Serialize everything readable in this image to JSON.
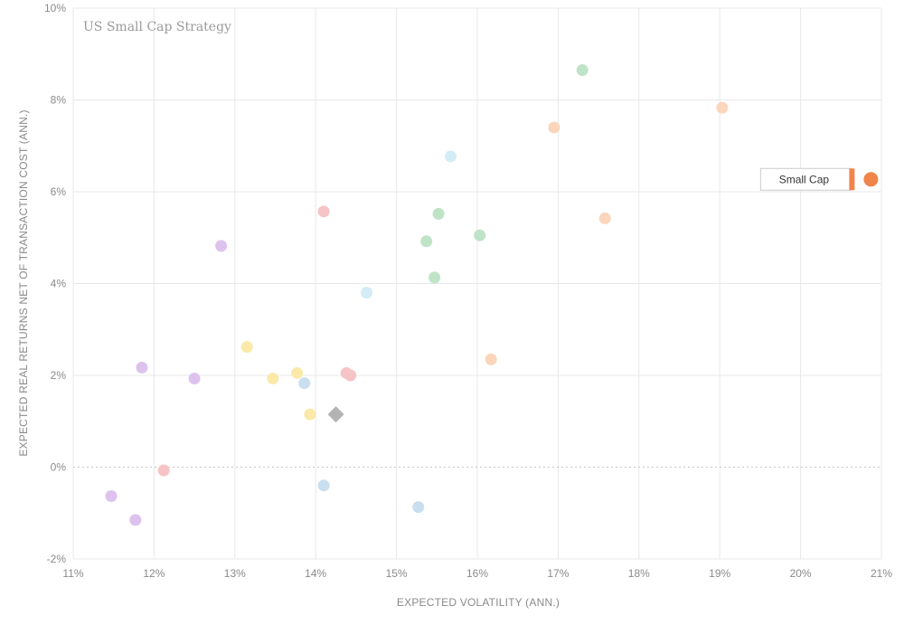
{
  "chart_data": {
    "type": "scatter",
    "title": "US Small Cap Strategy",
    "xlabel": "EXPECTED VOLATILITY (ANN.)",
    "ylabel": "EXPECTED REAL RETURNS NET OF TRANSACTION COST (ANN.)",
    "xlim": [
      11,
      21
    ],
    "ylim": [
      -2,
      10
    ],
    "x_ticks": [
      11,
      12,
      13,
      14,
      15,
      16,
      17,
      18,
      19,
      20,
      21
    ],
    "x_tick_labels": [
      "11%",
      "12%",
      "13%",
      "14%",
      "15%",
      "16%",
      "17%",
      "18%",
      "19%",
      "20%",
      "21%"
    ],
    "y_ticks": [
      -2,
      0,
      2,
      4,
      6,
      8,
      10
    ],
    "y_tick_labels": [
      "-2%",
      "0%",
      "2%",
      "4%",
      "6%",
      "8%",
      "10%"
    ],
    "grid": true,
    "zero_line_dotted": true,
    "points": [
      {
        "x": 11.47,
        "y": -0.63,
        "color": "#ddc2ee"
      },
      {
        "x": 11.77,
        "y": -1.15,
        "color": "#ddc2ee"
      },
      {
        "x": 11.85,
        "y": 2.17,
        "color": "#ddc2ee"
      },
      {
        "x": 12.5,
        "y": 1.93,
        "color": "#ddc2ee"
      },
      {
        "x": 12.83,
        "y": 4.82,
        "color": "#ddc2ee"
      },
      {
        "x": 12.12,
        "y": -0.07,
        "color": "#f6c4c6"
      },
      {
        "x": 14.1,
        "y": 5.57,
        "color": "#f6c4c6"
      },
      {
        "x": 14.38,
        "y": 2.05,
        "color": "#f6c4c6"
      },
      {
        "x": 14.43,
        "y": 2.0,
        "color": "#f6c4c6"
      },
      {
        "x": 13.15,
        "y": 2.62,
        "color": "#fbe9a9"
      },
      {
        "x": 13.47,
        "y": 1.93,
        "color": "#fbe9a9"
      },
      {
        "x": 13.77,
        "y": 2.05,
        "color": "#fbe9a9"
      },
      {
        "x": 13.93,
        "y": 1.15,
        "color": "#fbe9a9"
      },
      {
        "x": 13.86,
        "y": 1.83,
        "color": "#c9deef"
      },
      {
        "x": 14.1,
        "y": -0.4,
        "color": "#c9deef"
      },
      {
        "x": 15.27,
        "y": -0.87,
        "color": "#c9deef"
      },
      {
        "x": 14.63,
        "y": 3.8,
        "color": "#d3ecf6"
      },
      {
        "x": 15.67,
        "y": 6.77,
        "color": "#d3ecf6"
      },
      {
        "x": 15.37,
        "y": 4.92,
        "color": "#bfe3c6"
      },
      {
        "x": 15.47,
        "y": 4.13,
        "color": "#bfe3c6"
      },
      {
        "x": 15.52,
        "y": 5.52,
        "color": "#bfe3c6"
      },
      {
        "x": 16.03,
        "y": 5.05,
        "color": "#bfe3c6"
      },
      {
        "x": 17.3,
        "y": 8.65,
        "color": "#bfe3c6"
      },
      {
        "x": 16.17,
        "y": 2.35,
        "color": "#fbd5bc"
      },
      {
        "x": 16.95,
        "y": 7.4,
        "color": "#fbd5bc"
      },
      {
        "x": 17.58,
        "y": 5.42,
        "color": "#fbd5bc"
      },
      {
        "x": 19.03,
        "y": 7.83,
        "color": "#fbd5bc"
      }
    ],
    "benchmark": {
      "x": 14.25,
      "y": 1.15,
      "shape": "diamond",
      "color": "#b3b3b3"
    },
    "highlight": {
      "label": "Small Cap",
      "x": 20.87,
      "y": 6.27,
      "color": "#f0854a"
    }
  }
}
